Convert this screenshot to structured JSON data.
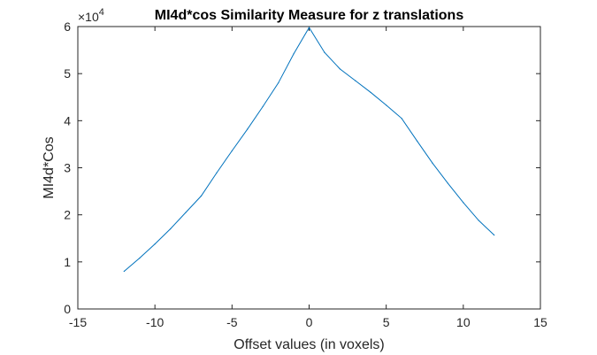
{
  "chart_data": {
    "type": "line",
    "title": "MI4d*cos Similarity Measure for z translations",
    "xlabel": "Offset values (in voxels)",
    "ylabel": "MI4d*Cos",
    "xlim": [
      -15,
      15
    ],
    "ylim": [
      0,
      60000
    ],
    "xticks": [
      -15,
      -10,
      -5,
      0,
      5,
      10,
      15
    ],
    "yticks": [
      0,
      10000,
      20000,
      30000,
      40000,
      50000,
      60000
    ],
    "yticks_display": [
      "0",
      "1",
      "2",
      "3",
      "4",
      "5",
      "6"
    ],
    "y_exponent_base": "×10",
    "y_exponent": "4",
    "grid": false,
    "line_color": "#0072BD",
    "series": [
      {
        "x": [
          -12,
          -11,
          -10,
          -9,
          -8,
          -7,
          -6,
          -5,
          -4,
          -3,
          -2,
          -1,
          0,
          1,
          2,
          3,
          4,
          5,
          6,
          7,
          8,
          9,
          10,
          11,
          12
        ],
        "values": [
          8000,
          10800,
          13800,
          17000,
          20500,
          24000,
          28900,
          33600,
          38200,
          43000,
          48000,
          54200,
          59800,
          54500,
          51000,
          48500,
          46000,
          43300,
          40500,
          35700,
          31000,
          26700,
          22600,
          18800,
          15700
        ]
      }
    ]
  }
}
